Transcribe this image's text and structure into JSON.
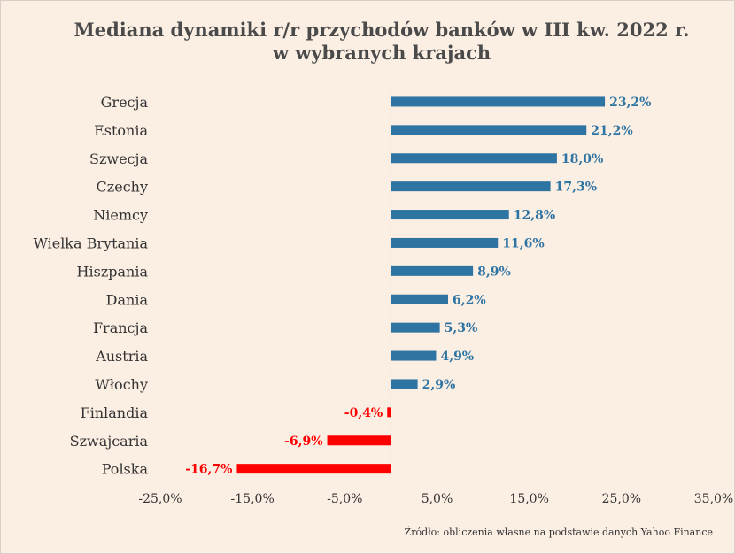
{
  "title_line1": "Mediana dynamiki r/r przychodów banków w III kw. 2022 r.",
  "title_line2": "w wybranych krajach",
  "source": "Źródło: obliczenia własne na podstawie danych Yahoo Finance",
  "colors": {
    "positive": "#2e74a2",
    "negative": "#ff0000",
    "background": "#fbeee3",
    "text": "#333333"
  },
  "chart_data": {
    "type": "bar",
    "orientation": "horizontal",
    "title": "Mediana dynamiki r/r przychodów banków w III kw. 2022 r. w wybranych krajach",
    "categories": [
      "Grecja",
      "Estonia",
      "Szwecja",
      "Czechy",
      "Niemcy",
      "Wielka Brytania",
      "Hiszpania",
      "Dania",
      "Francja",
      "Austria",
      "Włochy",
      "Finlandia",
      "Szwajcaria",
      "Polska"
    ],
    "values": [
      23.2,
      21.2,
      18.0,
      17.3,
      12.8,
      11.6,
      8.9,
      6.2,
      5.3,
      4.9,
      2.9,
      -0.4,
      -6.9,
      -16.7
    ],
    "value_labels": [
      "23,2%",
      "21,2%",
      "18,0%",
      "17,3%",
      "12,8%",
      "11,6%",
      "8,9%",
      "6,2%",
      "5,3%",
      "4,9%",
      "2,9%",
      "-0,4%",
      "-6,9%",
      "-16,7%"
    ],
    "xlim": [
      -25,
      35
    ],
    "xticks": [
      -25,
      -15,
      -5,
      5,
      15,
      25,
      35
    ],
    "xtick_labels": [
      "-25,0%",
      "-15,0%",
      "-5,0%",
      "5,0%",
      "15,0%",
      "25,0%",
      "35,0%"
    ],
    "grid": false,
    "legend": "none"
  }
}
